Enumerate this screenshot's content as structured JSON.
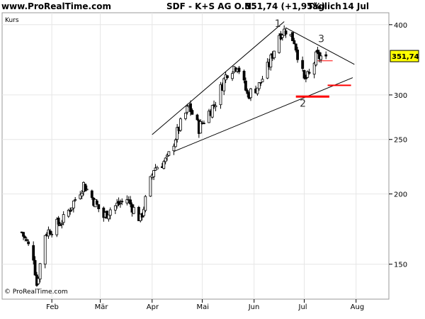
{
  "header": {
    "site": "www.ProRealTime.com",
    "instrument": "SDF - K+S AG O.N.",
    "price_change": "351,74 (+1,95%)",
    "frequency": "Täglich",
    "date": "14 Jul"
  },
  "panel_label": "Kurs",
  "copyright": "© ProRealTime.com",
  "colors": {
    "up_candle": "#ffffff",
    "down_candle": "#000000",
    "candle_wick": "#000000",
    "grid": "#e6e6e6",
    "support_level": "#ff0000",
    "price_tag": "#ffff00"
  },
  "chart_data": {
    "type": "candlestick",
    "title": "SDF - K+S AG O.N.",
    "ylabel": "Kurs",
    "y_scale": "log",
    "ylim": [
      130,
      420
    ],
    "y_ticks": [
      150,
      200,
      250,
      300,
      400
    ],
    "x_ticks": [
      "Feb",
      "Mär",
      "Apr",
      "Mai",
      "Jun",
      "Jul",
      "Aug"
    ],
    "last_price": "351,74",
    "anchors": [
      {
        "date": "2008-01-14",
        "close": 171
      },
      {
        "date": "2008-01-21",
        "close": 155
      },
      {
        "date": "2008-01-23",
        "close": 138
      },
      {
        "date": "2008-01-28",
        "close": 170
      },
      {
        "date": "2008-02-08",
        "close": 180
      },
      {
        "date": "2008-02-20",
        "close": 208
      },
      {
        "date": "2008-02-26",
        "close": 195
      },
      {
        "date": "2008-03-03",
        "close": 182
      },
      {
        "date": "2008-03-07",
        "close": 188
      },
      {
        "date": "2008-03-17",
        "close": 196
      },
      {
        "date": "2008-03-25",
        "close": 180
      },
      {
        "date": "2008-04-02",
        "close": 222
      },
      {
        "date": "2008-04-10",
        "close": 230
      },
      {
        "date": "2008-04-17",
        "close": 262
      },
      {
        "date": "2008-04-23",
        "close": 286
      },
      {
        "date": "2008-04-29",
        "close": 262
      },
      {
        "date": "2008-05-09",
        "close": 292
      },
      {
        "date": "2008-05-16",
        "close": 330
      },
      {
        "date": "2008-05-22",
        "close": 340
      },
      {
        "date": "2008-05-28",
        "close": 300
      },
      {
        "date": "2008-06-04",
        "close": 312
      },
      {
        "date": "2008-06-10",
        "close": 340
      },
      {
        "date": "2008-06-16",
        "close": 385
      },
      {
        "date": "2008-06-20",
        "close": 392
      },
      {
        "date": "2008-06-25",
        "close": 375
      },
      {
        "date": "2008-07-01",
        "close": 318
      },
      {
        "date": "2008-07-04",
        "close": 325
      },
      {
        "date": "2008-07-08",
        "close": 350
      },
      {
        "date": "2008-07-14",
        "close": 351.74
      }
    ],
    "annotations": [
      {
        "label": "1",
        "date": "2008-06-15",
        "price": 402
      },
      {
        "label": "2",
        "date": "2008-06-30",
        "price": 290
      },
      {
        "label": "3",
        "date": "2008-07-11",
        "price": 378
      }
    ],
    "trendlines": [
      {
        "from": {
          "date": "2008-04-01",
          "price": 255
        },
        "to": {
          "date": "2008-06-19",
          "price": 405
        }
      },
      {
        "from": {
          "date": "2008-04-14",
          "price": 238
        },
        "to": {
          "date": "2008-07-30",
          "price": 322
        }
      },
      {
        "from": {
          "date": "2008-06-20",
          "price": 395
        },
        "to": {
          "date": "2008-07-31",
          "price": 340
        }
      }
    ],
    "support_levels": [
      {
        "price": 298,
        "from": "2008-06-26",
        "to": "2008-07-16"
      },
      {
        "price": 312,
        "from": "2008-07-15",
        "to": "2008-07-29"
      },
      {
        "price": 345,
        "from": "2008-07-09",
        "to": "2008-07-18"
      }
    ]
  }
}
